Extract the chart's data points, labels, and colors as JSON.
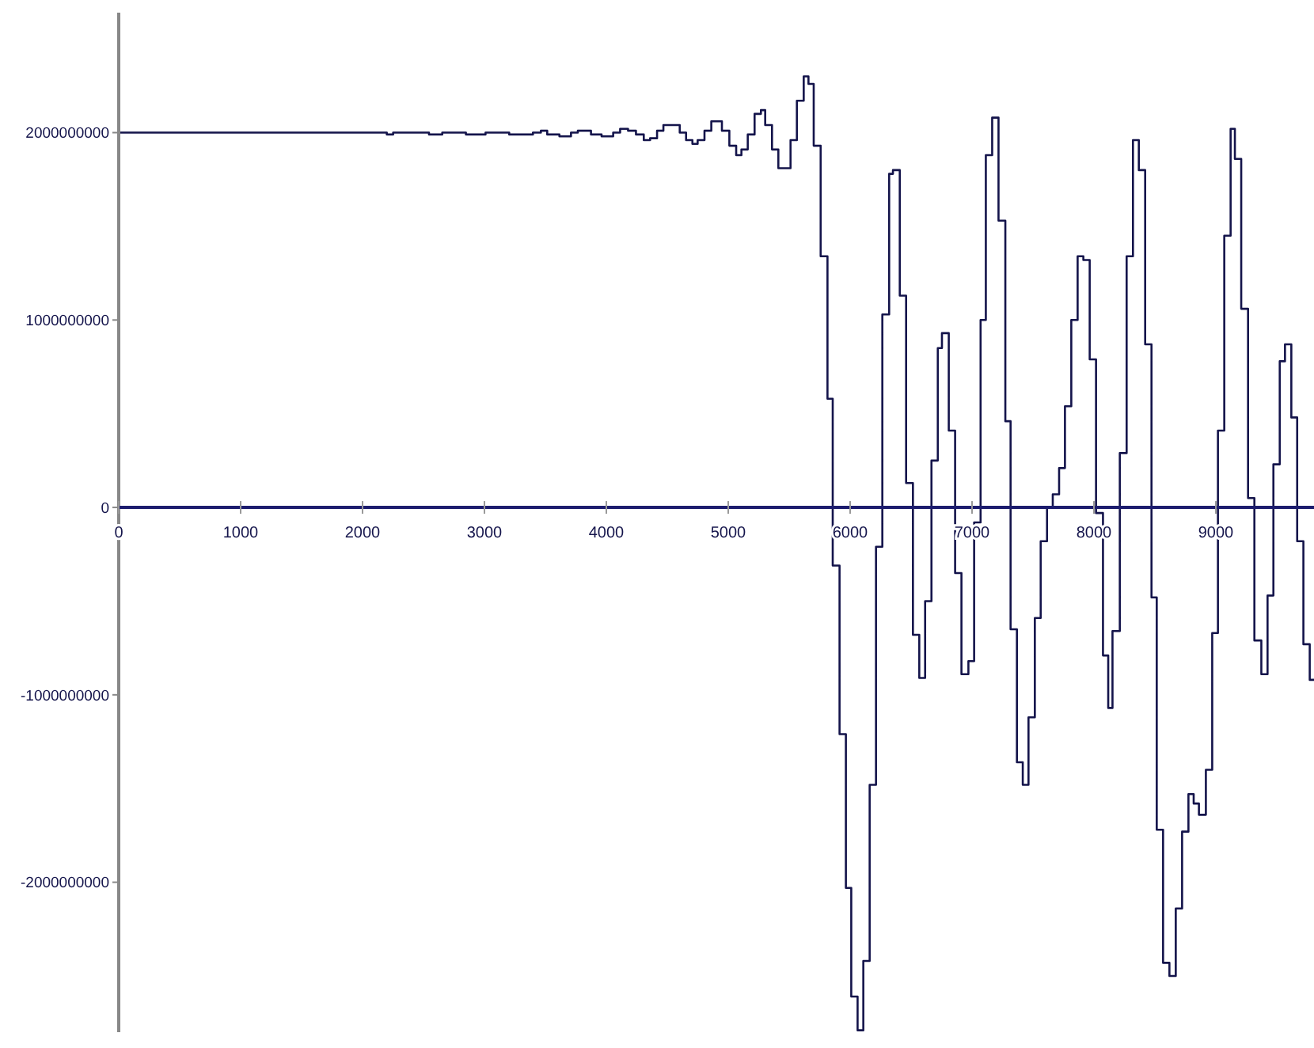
{
  "chart_data": {
    "type": "step",
    "color": "#14144b",
    "x": [
      0,
      2199,
      2251,
      2545,
      2654,
      2848,
      3009,
      3203,
      3398,
      3463,
      3515,
      3615,
      3710,
      3766,
      3874,
      3961,
      4056,
      4113,
      4178,
      4243,
      4307,
      4359,
      4416,
      4468,
      4602,
      4654,
      4706,
      4749,
      4805,
      4861,
      4948,
      5009,
      5065,
      5108,
      5160,
      5216,
      5268,
      5303,
      5359,
      5411,
      5511,
      5563,
      5619,
      5658,
      5701,
      5758,
      5814,
      5857,
      5913,
      5965,
      6009,
      6061,
      6108,
      6160,
      6212,
      6264,
      6320,
      6351,
      6407,
      6459,
      6515,
      6567,
      6615,
      6667,
      6719,
      6753,
      6809,
      6861,
      6913,
      6970,
      7017,
      7070,
      7113,
      7165,
      7217,
      7273,
      7316,
      7368,
      7416,
      7463,
      7515,
      7563,
      7615,
      7662,
      7714,
      7762,
      7814,
      7866,
      7913,
      7965,
      8017,
      8074,
      8117,
      8152,
      8212,
      8268,
      8320,
      8368,
      8420,
      8472,
      8515,
      8567,
      8619,
      8671,
      8723,
      8775,
      8818,
      8861,
      8918,
      8970,
      9017,
      9069,
      9121,
      9156,
      9208,
      9264,
      9316,
      9373,
      9424,
      9472,
      9524,
      9567,
      9619,
      9667,
      9718,
      9770,
      9805
    ],
    "values": [
      2000000000,
      1990000000,
      2000000000,
      1990000000,
      2000000000,
      1990000000,
      2000000000,
      1990000000,
      2000000000,
      2010000000,
      1990000000,
      1980000000,
      2000000000,
      2010000000,
      1990000000,
      1980000000,
      2000000000,
      2020000000,
      2010000000,
      1990000000,
      1960000000,
      1970000000,
      2010000000,
      2040000000,
      2000000000,
      1960000000,
      1940000000,
      1960000000,
      2010000000,
      2060000000,
      2010000000,
      1930000000,
      1880000000,
      1910000000,
      1990000000,
      2100000000,
      2120000000,
      2040000000,
      1910000000,
      1810000000,
      1960000000,
      2170000000,
      2300000000,
      2260000000,
      1930000000,
      1340000000,
      580000000,
      -310000000,
      -1210000000,
      -2030000000,
      -2610000000,
      -2790000000,
      -2420000000,
      -1480000000,
      -210000000,
      1030000000,
      1780000000,
      1800000000,
      1130000000,
      130000000,
      -680000000,
      -910000000,
      -500000000,
      250000000,
      850000000,
      930000000,
      410000000,
      -350000000,
      -890000000,
      -820000000,
      -80000000,
      1000000000,
      1880000000,
      2080000000,
      1530000000,
      460000000,
      -650000000,
      -1360000000,
      -1480000000,
      -1120000000,
      -590000000,
      -180000000,
      0,
      70000000,
      210000000,
      540000000,
      1000000000,
      1340000000,
      1320000000,
      790000000,
      -30000000,
      -790000000,
      -1070000000,
      -660000000,
      290000000,
      1340000000,
      1960000000,
      1800000000,
      870000000,
      -480000000,
      -1720000000,
      -2430000000,
      -2500000000,
      -2140000000,
      -1730000000,
      -1530000000,
      -1580000000,
      -1640000000,
      -1400000000,
      -670000000,
      410000000,
      1450000000,
      2020000000,
      1860000000,
      1060000000,
      50000000,
      -710000000,
      -890000000,
      -470000000,
      230000000,
      780000000,
      870000000,
      480000000,
      -180000000,
      -730000000,
      -920000000,
      -920000000
    ],
    "xlim": [
      0,
      9805
    ],
    "ylim": [
      -2800000000,
      2640000000
    ],
    "xticks": [
      0,
      1000,
      2000,
      3000,
      4000,
      5000,
      6000,
      7000,
      8000,
      9000
    ],
    "yticks": [
      -2000000000,
      -1000000000,
      0,
      1000000000,
      2000000000
    ]
  }
}
